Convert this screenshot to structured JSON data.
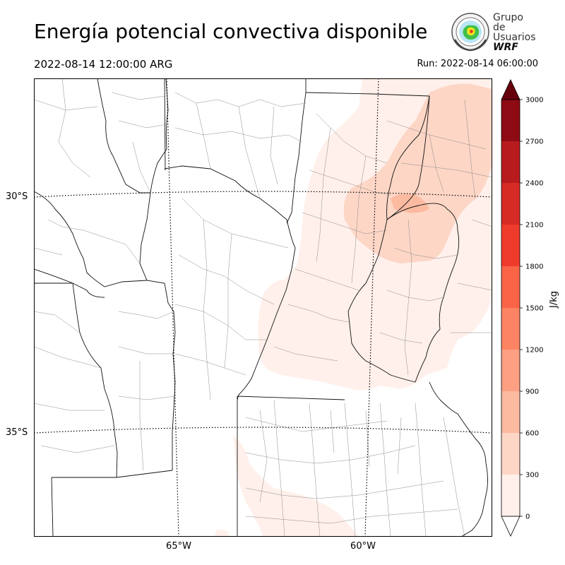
{
  "title": "Energía potencial convectiva disponible",
  "valid_time": "2022-08-14 12:00:00 ARG",
  "run_time": "Run: 2022-08-14 06:00:00",
  "logo": {
    "line1": "Grupo de",
    "line2": "Usuarios",
    "line3": "WRF",
    "icon": "wrf-globe-seal-icon"
  },
  "map": {
    "lat_labels": [
      {
        "text": "30°S",
        "lat": -30
      },
      {
        "text": "35°S",
        "lat": -35
      }
    ],
    "lon_labels": [
      {
        "text": "65°W",
        "lon": -65
      },
      {
        "text": "60°W",
        "lon": -60
      }
    ],
    "field_colors": {
      "low": "#fff0eb",
      "mid": "#fdd6c6",
      "high": "#fcbba1"
    }
  },
  "colorbar": {
    "label": "J/kg",
    "ticks": [
      "0",
      "300",
      "600",
      "900",
      "1200",
      "1500",
      "1800",
      "2100",
      "2400",
      "2700",
      "3000"
    ],
    "colors": [
      "#fff0eb",
      "#fdd6c6",
      "#fcbba1",
      "#fc9f82",
      "#fc8363",
      "#f96447",
      "#ef3b2c",
      "#d62b25",
      "#b81b1d",
      "#8e0b14"
    ],
    "under_color": "#ffffff",
    "over_color": "#67000d"
  }
}
